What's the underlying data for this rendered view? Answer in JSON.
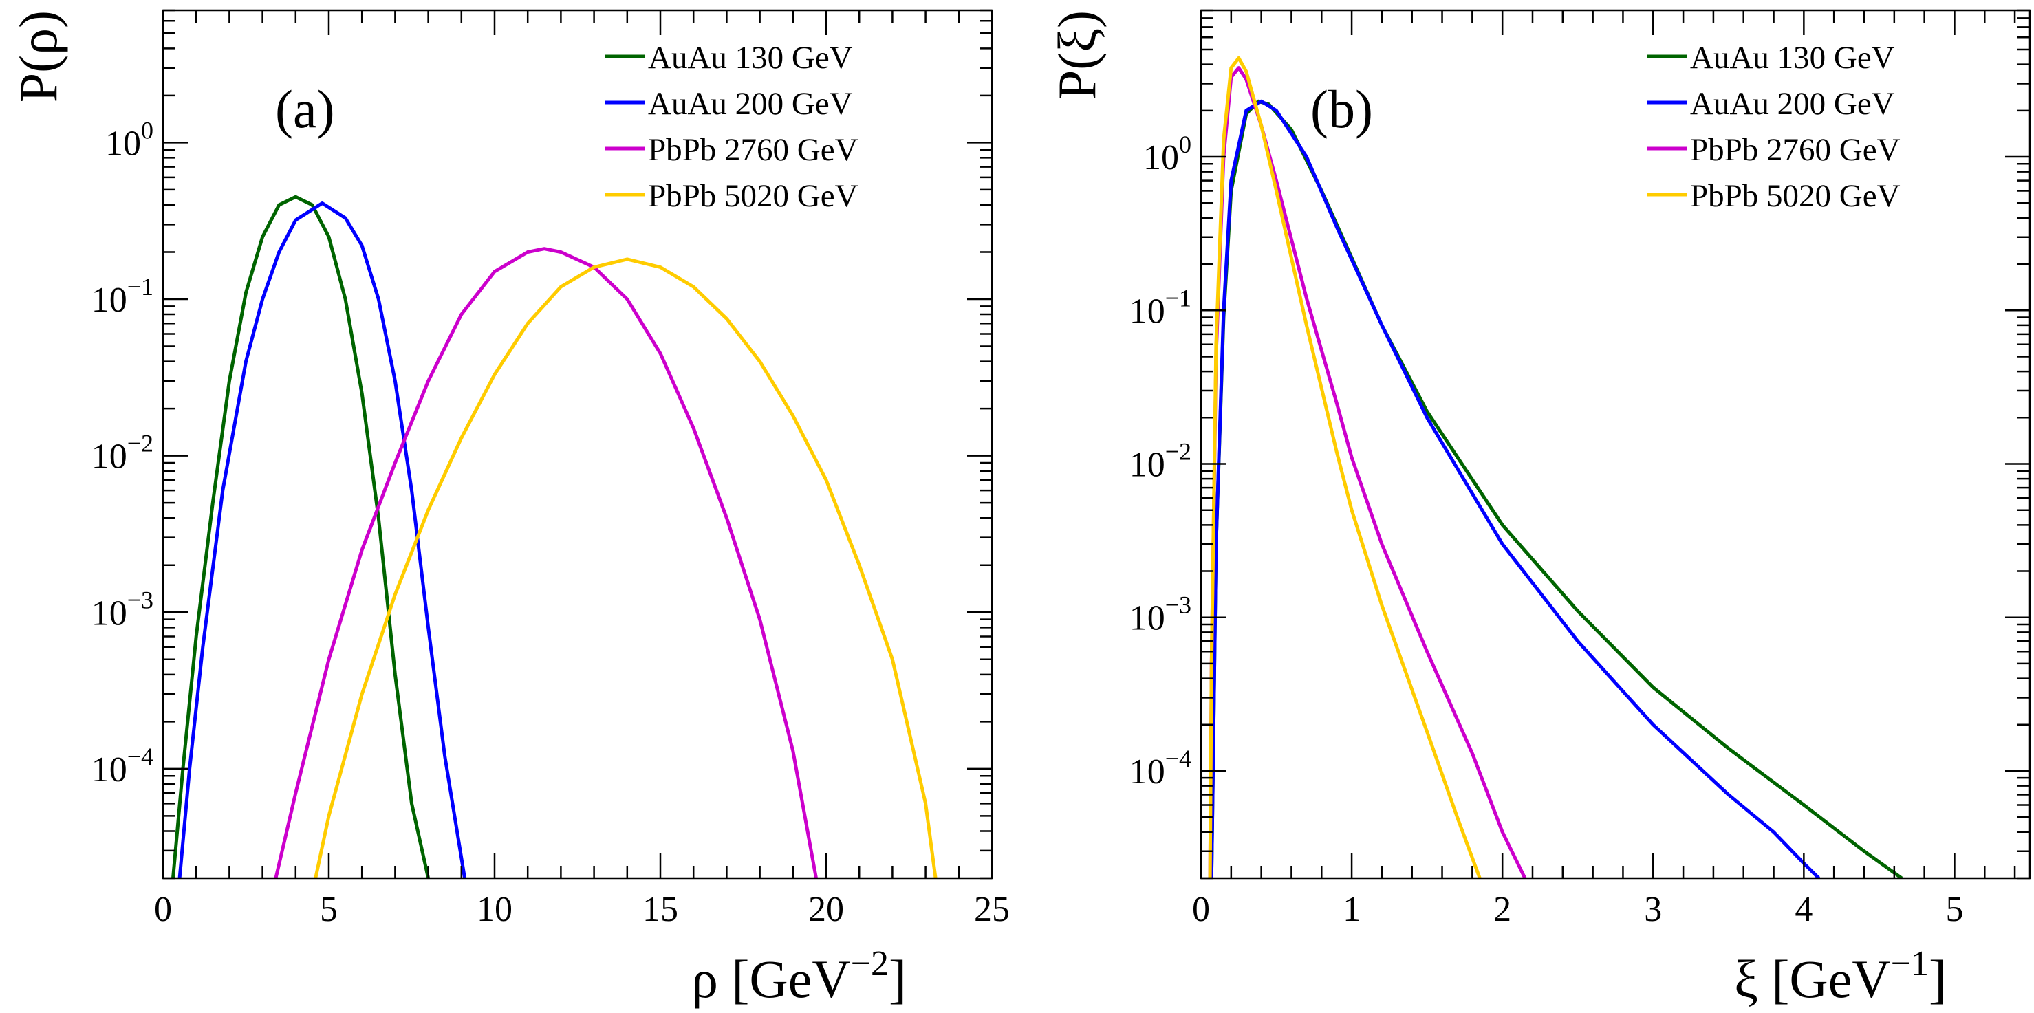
{
  "chart_data": [
    {
      "type": "line",
      "panel_label": "(a)",
      "xlabel": "ρ [GeV",
      "xlabel_exponent": "−2",
      "xlabel_close": "]",
      "ylabel": "P(ρ)",
      "xlim": [
        0,
        25
      ],
      "ylim": [
        2e-05,
        7
      ],
      "yscale": "log",
      "xticks": [
        0,
        5,
        10,
        15,
        20,
        25
      ],
      "xtick_labels": [
        "0",
        "5",
        "10",
        "15",
        "20",
        "25"
      ],
      "yticks": [
        0.0001,
        0.001,
        0.01,
        0.1,
        1
      ],
      "ytick_labels": [
        {
          "base": "10",
          "exp": "−4"
        },
        {
          "base": "10",
          "exp": "−3"
        },
        {
          "base": "10",
          "exp": "−2"
        },
        {
          "base": "10",
          "exp": "−1"
        },
        {
          "base": "10",
          "exp": "0"
        }
      ],
      "legend_position": "top-right",
      "series": [
        {
          "name": "AuAu 130 GeV",
          "color": "#006400",
          "x": [
            0.3,
            0.6,
            1.0,
            1.5,
            2.0,
            2.5,
            3.0,
            3.5,
            4.0,
            4.5,
            5.0,
            5.5,
            6.0,
            6.5,
            7.0,
            7.5,
            8.0
          ],
          "y": [
            2e-05,
            0.0001,
            0.0007,
            0.005,
            0.03,
            0.11,
            0.25,
            0.4,
            0.45,
            0.4,
            0.25,
            0.1,
            0.025,
            0.004,
            0.0004,
            6e-05,
            2e-05
          ]
        },
        {
          "name": "AuAu 200 GeV",
          "color": "#0000ff",
          "x": [
            0.5,
            0.8,
            1.2,
            1.8,
            2.5,
            3.0,
            3.5,
            4.0,
            4.8,
            5.5,
            6.0,
            6.5,
            7.0,
            7.5,
            8.0,
            8.5,
            9.1
          ],
          "y": [
            2e-05,
            0.0001,
            0.0006,
            0.006,
            0.04,
            0.1,
            0.2,
            0.32,
            0.41,
            0.33,
            0.22,
            0.1,
            0.03,
            0.006,
            0.0008,
            0.00012,
            2e-05
          ]
        },
        {
          "name": "PbPb 2760 GeV",
          "color": "#cc00cc",
          "x": [
            3.4,
            4.0,
            5.0,
            6.0,
            7.0,
            8.0,
            9.0,
            10.0,
            11.0,
            11.5,
            12.0,
            13.0,
            14.0,
            15.0,
            16.0,
            17.0,
            18.0,
            19.0,
            19.7
          ],
          "y": [
            2e-05,
            7e-05,
            0.0005,
            0.0025,
            0.009,
            0.03,
            0.08,
            0.15,
            0.2,
            0.21,
            0.2,
            0.16,
            0.1,
            0.045,
            0.015,
            0.004,
            0.0009,
            0.00013,
            2e-05
          ]
        },
        {
          "name": "PbPb 5020 GeV",
          "color": "#ffcc00",
          "x": [
            4.6,
            5.0,
            6.0,
            7.0,
            8.0,
            9.0,
            10.0,
            11.0,
            12.0,
            13.0,
            14.0,
            15.0,
            16.0,
            17.0,
            18.0,
            19.0,
            20.0,
            21.0,
            22.0,
            23.0,
            23.3
          ],
          "y": [
            2e-05,
            5e-05,
            0.0003,
            0.0013,
            0.0045,
            0.013,
            0.033,
            0.07,
            0.12,
            0.16,
            0.18,
            0.16,
            0.12,
            0.075,
            0.04,
            0.018,
            0.007,
            0.002,
            0.0005,
            6e-05,
            2e-05
          ]
        }
      ]
    },
    {
      "type": "line",
      "panel_label": "(b)",
      "xlabel": "ξ [GeV",
      "xlabel_exponent": "−1",
      "xlabel_close": "]",
      "ylabel": "P(ξ)",
      "xlim": [
        0,
        5.5
      ],
      "ylim": [
        2e-05,
        9
      ],
      "yscale": "log",
      "xticks": [
        0,
        1,
        2,
        3,
        4,
        5
      ],
      "xtick_labels": [
        "0",
        "1",
        "2",
        "3",
        "4",
        "5"
      ],
      "yticks": [
        0.0001,
        0.001,
        0.01,
        0.1,
        1
      ],
      "ytick_labels": [
        {
          "base": "10",
          "exp": "−4"
        },
        {
          "base": "10",
          "exp": "−3"
        },
        {
          "base": "10",
          "exp": "−2"
        },
        {
          "base": "10",
          "exp": "−1"
        },
        {
          "base": "10",
          "exp": "0"
        }
      ],
      "legend_position": "top-right",
      "series": [
        {
          "name": "AuAu 130 GeV",
          "color": "#006400",
          "x": [
            0.07,
            0.08,
            0.1,
            0.15,
            0.2,
            0.3,
            0.38,
            0.45,
            0.6,
            0.8,
            1.0,
            1.2,
            1.5,
            2.0,
            2.5,
            3.0,
            3.5,
            4.0,
            4.4,
            4.65
          ],
          "y": [
            2e-05,
            0.0001,
            0.003,
            0.09,
            0.6,
            1.9,
            2.3,
            2.2,
            1.5,
            0.6,
            0.22,
            0.08,
            0.022,
            0.004,
            0.0011,
            0.00035,
            0.00014,
            6e-05,
            3e-05,
            2e-05
          ]
        },
        {
          "name": "AuAu 200 GeV",
          "color": "#0000ff",
          "x": [
            0.07,
            0.08,
            0.1,
            0.15,
            0.2,
            0.3,
            0.4,
            0.5,
            0.7,
            0.9,
            1.2,
            1.5,
            2.0,
            2.5,
            3.0,
            3.5,
            3.8,
            4.0,
            4.1
          ],
          "y": [
            2e-05,
            0.0001,
            0.003,
            0.1,
            0.7,
            2.0,
            2.3,
            2.0,
            1.0,
            0.35,
            0.08,
            0.02,
            0.003,
            0.0007,
            0.0002,
            7e-05,
            4e-05,
            2.5e-05,
            2e-05
          ]
        },
        {
          "name": "PbPb 2760 GeV",
          "color": "#cc00cc",
          "x": [
            0.06,
            0.07,
            0.1,
            0.15,
            0.2,
            0.25,
            0.3,
            0.4,
            0.5,
            0.7,
            0.9,
            1.0,
            1.2,
            1.5,
            1.8,
            2.0,
            2.15
          ],
          "y": [
            2e-05,
            0.0005,
            0.05,
            1.0,
            3.3,
            3.8,
            3.2,
            1.6,
            0.7,
            0.12,
            0.025,
            0.011,
            0.003,
            0.0006,
            0.00013,
            4e-05,
            2e-05
          ]
        },
        {
          "name": "PbPb 5020 GeV",
          "color": "#ffcc00",
          "x": [
            0.06,
            0.07,
            0.1,
            0.15,
            0.2,
            0.25,
            0.3,
            0.4,
            0.5,
            0.7,
            0.9,
            1.0,
            1.2,
            1.5,
            1.7,
            1.85
          ],
          "y": [
            2e-05,
            0.0005,
            0.06,
            1.3,
            3.8,
            4.4,
            3.6,
            1.6,
            0.6,
            0.08,
            0.012,
            0.005,
            0.0012,
            0.00018,
            5e-05,
            2e-05
          ]
        }
      ]
    }
  ]
}
